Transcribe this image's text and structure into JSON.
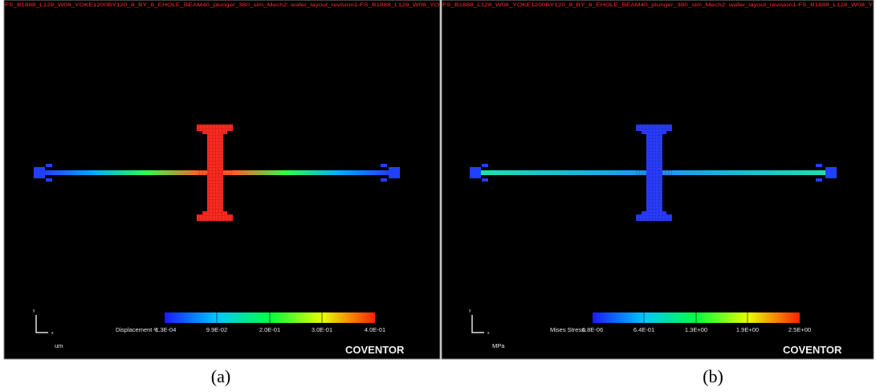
{
  "panels": [
    {
      "title": "FS_B1888_L128_W08_YOKE1200BY120_8_BY_8_EHOLE_BEAM40_plunger_380_sim_Mech2: wafer_layout_revision1-FS_B1888_L128_W08_YO",
      "legend_label": "Displacement Y:",
      "ticks": [
        "-1.3E-04",
        "9.9E-02",
        "2.0E-01",
        "3.0E-01",
        "4.0E-01"
      ],
      "unit": "um",
      "brand": "COVENTOR",
      "axis_x": "x",
      "axis_y": "y",
      "caption": "(a)"
    },
    {
      "title": "FS_B1888_L128_W08_YOKE1200BY120_8_BY_8_EHOLE_BEAM40_plunger_380_sim_Mech2: wafer_layout_revision1-FS_B1888_L128_W08_Y",
      "legend_label": "Mises Stress:",
      "ticks": [
        "6.8E-06",
        "6.4E-01",
        "1.3E+00",
        "1.9E+00",
        "2.5E+00"
      ],
      "unit": "MPa",
      "brand": "COVENTOR",
      "axis_x": "x",
      "axis_y": "y",
      "caption": "(b)"
    }
  ]
}
